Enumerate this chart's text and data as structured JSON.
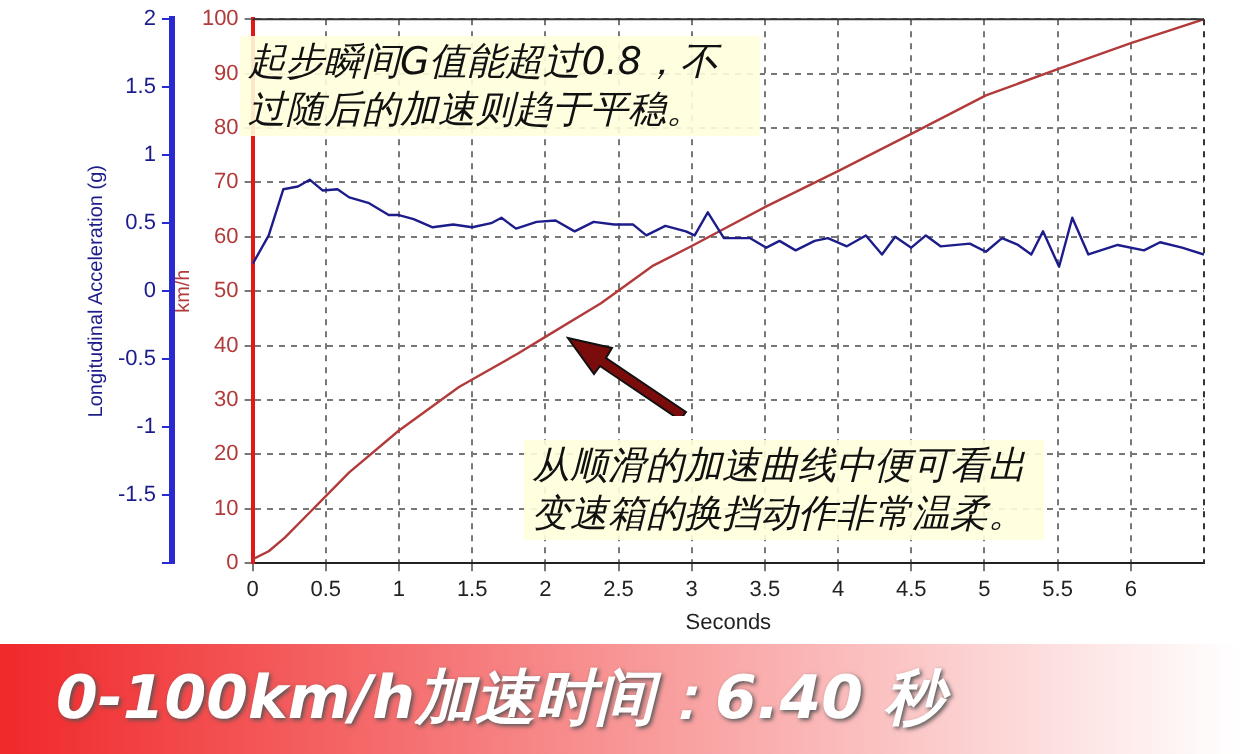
{
  "chart_data": {
    "type": "line",
    "xlabel": "Seconds",
    "ylabel": "Longitudinal Acceleration (g)",
    "y2label": "km/h",
    "xlim": [
      0,
      6.5
    ],
    "xticks": [
      0,
      0.5,
      1,
      1.5,
      2,
      2.5,
      3,
      3.5,
      4,
      4.5,
      5,
      5.5,
      6
    ],
    "ylim": [
      -2,
      2
    ],
    "yticks": [
      {
        "value": -2,
        "label": null
      },
      -1.5,
      -1,
      -0.5,
      0,
      0.5,
      1,
      1.5,
      2
    ],
    "y2lim": [
      0,
      100
    ],
    "y2ticks": [
      0,
      10,
      20,
      30,
      40,
      50,
      60,
      70,
      80,
      90,
      100
    ],
    "grid": true,
    "series": [
      {
        "color": "#1c1c8a",
        "x": [
          0,
          0.11,
          0.21,
          0.31,
          0.39,
          0.48,
          0.58,
          0.66,
          0.79,
          0.93,
          1.0,
          1.1,
          1.23,
          1.37,
          1.5,
          1.63,
          1.7,
          1.8,
          1.94,
          2.07,
          2.2,
          2.33,
          2.47,
          2.6,
          2.69,
          2.82,
          2.96,
          3.02,
          3.11,
          3.22,
          3.4,
          3.51,
          3.6,
          3.71,
          3.84,
          3.93,
          4.06,
          4.19,
          4.3,
          4.39,
          4.5,
          4.6,
          4.7,
          4.9,
          5.01,
          5.12,
          5.23,
          5.32,
          5.4,
          5.51,
          5.6,
          5.71,
          5.91,
          6.09,
          6.2,
          6.35,
          6.5
        ],
        "values": [
          0.2,
          0.41,
          0.75,
          0.77,
          0.82,
          0.74,
          0.75,
          0.69,
          0.65,
          0.56,
          0.56,
          0.53,
          0.47,
          0.49,
          0.47,
          0.5,
          0.54,
          0.46,
          0.51,
          0.52,
          0.44,
          0.51,
          0.49,
          0.49,
          0.41,
          0.48,
          0.44,
          0.41,
          0.58,
          0.39,
          0.39,
          0.32,
          0.37,
          0.3,
          0.37,
          0.39,
          0.33,
          0.41,
          0.27,
          0.4,
          0.32,
          0.41,
          0.33,
          0.35,
          0.29,
          0.39,
          0.34,
          0.27,
          0.44,
          0.18,
          0.54,
          0.27,
          0.34,
          0.3,
          0.36,
          0.32,
          0.27
        ]
      },
      {
        "color": "#b23a3a",
        "axis": "y2",
        "x": [
          0,
          0.11,
          0.22,
          0.4,
          0.66,
          1.0,
          1.41,
          1.81,
          2.0,
          2.38,
          2.73,
          3.0,
          3.51,
          4.01,
          4.52,
          5.01,
          5.51,
          6.0,
          6.5
        ],
        "values": [
          0.7,
          2.2,
          4.7,
          9.6,
          16.7,
          24.4,
          32.4,
          38.5,
          41.6,
          47.8,
          54.6,
          58.3,
          65.6,
          72.2,
          79.2,
          86,
          90.9,
          95.6,
          100
        ]
      }
    ],
    "annotations": [
      "起步瞬间G值能超过0.8，不过随后的加速则趋于平稳。",
      "从顺滑的加速曲线中便可看出变速箱的换挡动作非常温柔。",
      "0-100km/h加速时间：6.40 秒"
    ]
  }
}
